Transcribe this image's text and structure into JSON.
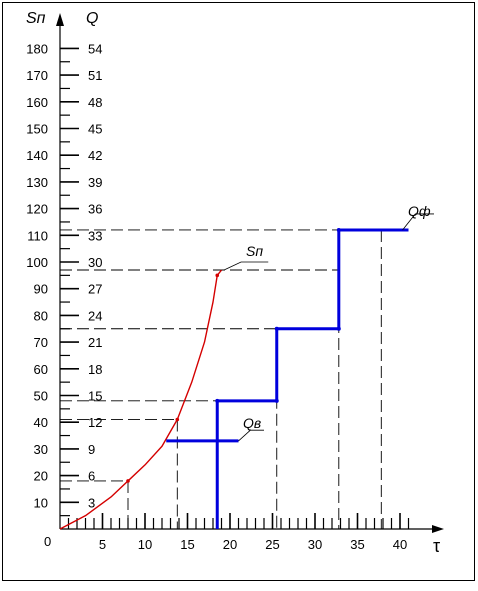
{
  "chart_data": {
    "type": "line",
    "title": "",
    "axes": {
      "x": {
        "label": "τ",
        "ticks": [
          "5",
          "10",
          "15",
          "20",
          "25",
          "30",
          "35",
          "40"
        ],
        "tick_values": [
          5,
          10,
          15,
          20,
          25,
          30,
          35,
          40
        ],
        "origin_label": "0",
        "range": [
          0,
          45
        ]
      },
      "y_left": {
        "label": "Sп",
        "ticks": [
          "10",
          "20",
          "30",
          "40",
          "50",
          "60",
          "70",
          "80",
          "90",
          "100",
          "110",
          "120",
          "130",
          "140",
          "150",
          "160",
          "170",
          "180"
        ],
        "tick_values": [
          10,
          20,
          30,
          40,
          50,
          60,
          70,
          80,
          90,
          100,
          110,
          120,
          130,
          140,
          150,
          160,
          170,
          180
        ],
        "range": [
          0,
          190
        ]
      },
      "y_right": {
        "label": "Q",
        "ticks": [
          "3",
          "6",
          "9",
          "12",
          "15",
          "18",
          "21",
          "24",
          "27",
          "30",
          "33",
          "36",
          "39",
          "42",
          "45",
          "48",
          "51",
          "54"
        ],
        "tick_values": [
          3,
          6,
          9,
          12,
          15,
          18,
          21,
          24,
          27,
          30,
          33,
          36,
          39,
          42,
          45,
          48,
          51,
          54
        ],
        "range": [
          0,
          57
        ]
      }
    },
    "series": [
      {
        "name": "Sп",
        "color": "#d40000",
        "style": "curve",
        "points": [
          [
            0,
            0
          ],
          [
            3,
            5
          ],
          [
            6,
            12
          ],
          [
            8,
            18
          ],
          [
            10,
            24
          ],
          [
            12,
            31
          ],
          [
            13.8,
            41
          ],
          [
            15.5,
            55
          ],
          [
            17,
            70
          ],
          [
            18,
            85
          ],
          [
            18.5,
            95
          ],
          [
            19,
            97
          ]
        ]
      },
      {
        "name": "Qф",
        "color": "#0000dd",
        "style": "step",
        "points": [
          [
            18.5,
            0
          ],
          [
            18.5,
            48
          ],
          [
            25.5,
            48
          ],
          [
            25.5,
            75
          ],
          [
            32.8,
            75
          ],
          [
            32.8,
            112
          ],
          [
            41,
            112
          ]
        ]
      },
      {
        "name": "Qв",
        "color": "#0000dd",
        "style": "segment",
        "points": [
          [
            12.5,
            33
          ],
          [
            21,
            33
          ]
        ]
      }
    ],
    "annotations": [
      {
        "text": "Sп",
        "near_series": "Sп"
      },
      {
        "text": "Qф",
        "near_series": "Qф"
      },
      {
        "text": "Qв",
        "near_series": "Qв"
      }
    ],
    "guides": {
      "vertical_x": [
        8,
        13.8,
        18.5,
        25.5,
        32.8,
        37.8
      ],
      "horizontal_y": [
        18,
        41,
        48,
        75,
        97,
        112
      ]
    }
  }
}
